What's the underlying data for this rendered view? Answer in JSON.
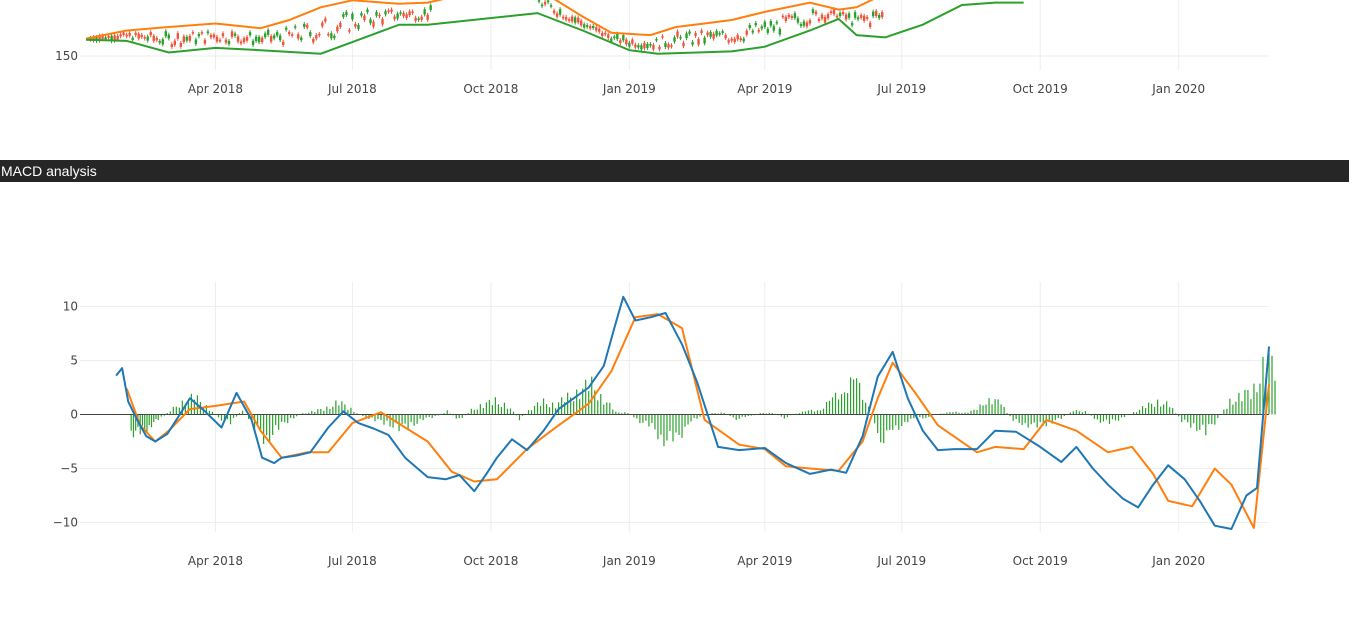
{
  "colors": {
    "candle_up": "#2ca02c",
    "candle_down": "#ef553b",
    "band_upper": "#ff7f0e",
    "band_lower": "#2ca02c",
    "macd": "#1f77b4",
    "signal": "#ff7f0e",
    "histogram": "#2ca02c",
    "header_bg": "#262626",
    "grid": "#eeeeee"
  },
  "header": {
    "title": "MACD analysis"
  },
  "chart_data": [
    {
      "type": "candlestick",
      "title": "",
      "partially_cropped": true,
      "y_ticks": [
        "150"
      ],
      "x_ticks": [
        "Apr 2018",
        "Jul 2018",
        "Oct 2018",
        "Jan 2019",
        "Apr 2019",
        "Jul 2019",
        "Oct 2019",
        "Jan 2020"
      ],
      "grid": true,
      "series": [
        {
          "name": "",
          "style": "upper band",
          "x": [
            "2018-01-05",
            "2018-02-01",
            "2018-03-01",
            "2018-04-01",
            "2018-05-01",
            "2018-05-20",
            "2018-06-10",
            "2018-07-01",
            "2018-08-01",
            "2018-08-20",
            "2018-10-20",
            "2018-11-01",
            "2018-12-01",
            "2018-12-20",
            "2019-01-15",
            "2019-02-01",
            "2019-02-20",
            "2019-03-10",
            "2019-04-01",
            "2019-05-01",
            "2019-05-20",
            "2019-06-01",
            "2019-06-20"
          ],
          "y": [
            165,
            172,
            175,
            178,
            174,
            181,
            192,
            198,
            195,
            196,
            214,
            208,
            184,
            170,
            168,
            175,
            178,
            181,
            188,
            196,
            190,
            192,
            204
          ]
        },
        {
          "name": "",
          "style": "lower band",
          "x": [
            "2018-01-05",
            "2018-02-01",
            "2018-03-01",
            "2018-04-01",
            "2018-05-01",
            "2018-06-10",
            "2018-07-01",
            "2018-08-01",
            "2018-08-20",
            "2018-11-01",
            "2018-12-01",
            "2019-01-01",
            "2019-01-20",
            "2019-02-15",
            "2019-03-10",
            "2019-04-01",
            "2019-05-01",
            "2019-05-20",
            "2019-06-01",
            "2019-06-20",
            "2019-07-15",
            "2019-08-10",
            "2019-09-01",
            "2019-09-20"
          ],
          "y": [
            164,
            163,
            153,
            157,
            155,
            152,
            162,
            177,
            177,
            187,
            172,
            155,
            152,
            153,
            154,
            158,
            172,
            182,
            168,
            166,
            177,
            194,
            196,
            196
          ]
        }
      ]
    },
    {
      "type": "line+bar",
      "title": "",
      "ylim": [
        -12,
        12
      ],
      "y_ticks": [
        "10",
        "5",
        "0",
        "−5",
        "−10"
      ],
      "x_ticks": [
        "Apr 2018",
        "Jul 2018",
        "Oct 2018",
        "Jan 2019",
        "Apr 2019",
        "Jul 2019",
        "Oct 2019",
        "Jan 2020"
      ],
      "grid": true,
      "zero_line": true,
      "macd": {
        "name": "",
        "x": [
          "2018-01-25",
          "2018-01-29",
          "2018-02-02",
          "2018-02-08",
          "2018-02-14",
          "2018-02-20",
          "2018-02-28",
          "2018-03-07",
          "2018-03-15",
          "2018-03-25",
          "2018-04-05",
          "2018-04-15",
          "2018-04-25",
          "2018-05-02",
          "2018-05-10",
          "2018-05-15",
          "2018-05-20",
          "2018-05-25",
          "2018-06-03",
          "2018-06-15",
          "2018-06-25",
          "2018-07-05",
          "2018-07-15",
          "2018-07-25",
          "2018-08-05",
          "2018-08-20",
          "2018-09-01",
          "2018-09-10",
          "2018-09-20",
          "2018-09-28",
          "2018-10-05",
          "2018-10-15",
          "2018-10-25",
          "2018-11-05",
          "2018-11-15",
          "2018-11-25",
          "2018-12-05",
          "2018-12-15",
          "2018-12-22",
          "2018-12-28",
          "2019-01-05",
          "2019-01-15",
          "2019-01-25",
          "2019-02-05",
          "2019-02-15",
          "2019-03-01",
          "2019-03-15",
          "2019-04-01",
          "2019-04-15",
          "2019-05-01",
          "2019-05-15",
          "2019-05-25",
          "2019-06-05",
          "2019-06-15",
          "2019-06-25",
          "2019-07-05",
          "2019-07-15",
          "2019-07-25",
          "2019-08-05",
          "2019-08-20",
          "2019-09-01",
          "2019-09-15",
          "2019-10-01",
          "2019-10-15",
          "2019-10-25",
          "2019-11-05",
          "2019-11-15",
          "2019-11-25",
          "2019-12-05",
          "2019-12-15",
          "2019-12-25",
          "2020-01-05",
          "2020-01-15",
          "2020-01-25",
          "2020-02-05",
          "2020-02-15",
          "2020-02-22",
          "2020-03-01"
        ],
        "y": [
          3.6,
          4.3,
          1.2,
          -0.5,
          -2.0,
          -2.5,
          -1.8,
          -0.3,
          1.5,
          0.3,
          -1.2,
          2.0,
          -0.5,
          -4.0,
          -4.5,
          -4.0,
          -3.9,
          -3.8,
          -3.5,
          -1.2,
          0.3,
          -0.8,
          -1.3,
          -1.9,
          -4.0,
          -5.8,
          -6.0,
          -5.6,
          -7.1,
          -5.5,
          -4.0,
          -2.3,
          -3.3,
          -1.5,
          0.5,
          1.5,
          2.5,
          4.5,
          8.0,
          10.9,
          8.7,
          9.0,
          9.4,
          6.5,
          3.0,
          -3.0,
          -3.3,
          -3.1,
          -4.5,
          -5.5,
          -5.1,
          -5.4,
          -2.0,
          3.5,
          5.8,
          1.5,
          -1.5,
          -3.3,
          -3.2,
          -3.2,
          -1.5,
          -1.6,
          -3.0,
          -4.4,
          -3.0,
          -5.0,
          -6.5,
          -7.8,
          -8.6,
          -6.5,
          -4.7,
          -6.0,
          -8.0,
          -10.3,
          -10.6,
          -7.5,
          -6.8,
          6.3
        ]
      },
      "signal": {
        "name": "",
        "x": [
          "2018-02-01",
          "2018-02-10",
          "2018-02-20",
          "2018-03-01",
          "2018-03-15",
          "2018-04-01",
          "2018-04-20",
          "2018-05-01",
          "2018-05-15",
          "2018-06-01",
          "2018-06-15",
          "2018-07-01",
          "2018-07-20",
          "2018-08-05",
          "2018-08-20",
          "2018-09-05",
          "2018-09-20",
          "2018-10-05",
          "2018-10-25",
          "2018-11-15",
          "2018-12-05",
          "2018-12-20",
          "2019-01-05",
          "2019-01-20",
          "2019-02-05",
          "2019-02-20",
          "2019-03-15",
          "2019-04-01",
          "2019-04-15",
          "2019-05-01",
          "2019-05-20",
          "2019-06-05",
          "2019-06-15",
          "2019-06-25",
          "2019-07-10",
          "2019-07-25",
          "2019-08-20",
          "2019-09-01",
          "2019-09-20",
          "2019-10-05",
          "2019-10-25",
          "2019-11-15",
          "2019-12-01",
          "2019-12-15",
          "2019-12-25",
          "2020-01-10",
          "2020-01-25",
          "2020-02-05",
          "2020-02-20",
          "2020-03-01"
        ],
        "y": [
          2.4,
          -1.0,
          -2.5,
          -1.5,
          0.5,
          0.8,
          1.2,
          -1.5,
          -4.0,
          -3.5,
          -3.5,
          -0.8,
          0.2,
          -1.2,
          -2.5,
          -5.3,
          -6.2,
          -6.0,
          -3.2,
          -1.0,
          1.0,
          4.0,
          9.0,
          9.3,
          8.0,
          -0.5,
          -2.8,
          -3.2,
          -4.8,
          -5.0,
          -5.2,
          -2.5,
          1.5,
          4.8,
          2.0,
          -1.0,
          -3.5,
          -3.0,
          -3.2,
          -0.5,
          -1.5,
          -3.5,
          -3.0,
          -5.5,
          -8.0,
          -8.5,
          -5.0,
          -6.5,
          -10.5,
          2.8
        ]
      },
      "histogram": {
        "name": "",
        "x": [
          "2018-02-04",
          "2018-02-10",
          "2018-02-16",
          "2018-02-22",
          "2018-03-02",
          "2018-03-10",
          "2018-03-18",
          "2018-03-26",
          "2018-04-03",
          "2018-04-11",
          "2018-04-19",
          "2018-04-27",
          "2018-05-05",
          "2018-05-13",
          "2018-05-21",
          "2018-05-29",
          "2018-06-06",
          "2018-06-14",
          "2018-06-22",
          "2018-06-30",
          "2018-07-08",
          "2018-07-16",
          "2018-07-24",
          "2018-08-01",
          "2018-08-09",
          "2018-08-17",
          "2018-08-25",
          "2018-09-02",
          "2018-09-10",
          "2018-09-18",
          "2018-09-26",
          "2018-10-04",
          "2018-10-12",
          "2018-10-20",
          "2018-10-28",
          "2018-11-05",
          "2018-11-13",
          "2018-11-21",
          "2018-11-29",
          "2018-12-07",
          "2018-12-15",
          "2018-12-23",
          "2018-12-31",
          "2019-01-08",
          "2019-01-16",
          "2019-01-24",
          "2019-02-01",
          "2019-02-09",
          "2019-02-17",
          "2019-02-25",
          "2019-03-05",
          "2019-03-13",
          "2019-03-21",
          "2019-03-29",
          "2019-04-06",
          "2019-04-14",
          "2019-04-22",
          "2019-04-30",
          "2019-05-08",
          "2019-05-16",
          "2019-05-24",
          "2019-06-01",
          "2019-06-09",
          "2019-06-17",
          "2019-06-25",
          "2019-07-03",
          "2019-07-11",
          "2019-07-19",
          "2019-07-27",
          "2019-08-04",
          "2019-08-12",
          "2019-08-20",
          "2019-08-28",
          "2019-09-05",
          "2019-09-13",
          "2019-09-21",
          "2019-09-29",
          "2019-10-07",
          "2019-10-15",
          "2019-10-23",
          "2019-10-31",
          "2019-11-08",
          "2019-11-16",
          "2019-11-24",
          "2019-12-02",
          "2019-12-10",
          "2019-12-18",
          "2019-12-26",
          "2020-01-03",
          "2020-01-11",
          "2020-01-19",
          "2020-01-27",
          "2020-02-04",
          "2020-02-12",
          "2020-02-20",
          "2020-02-28"
        ],
        "y": [
          -1.5,
          -1.8,
          -1.0,
          -0.5,
          0.3,
          1.2,
          1.5,
          0.8,
          -0.3,
          -0.8,
          0.4,
          -1.2,
          -2.3,
          -1.2,
          -0.4,
          0.1,
          0.3,
          0.6,
          1.1,
          0.5,
          -0.2,
          -0.5,
          -0.8,
          -1.2,
          -1.0,
          -0.4,
          -0.2,
          0.3,
          -0.5,
          0.4,
          0.9,
          1.2,
          0.8,
          -0.4,
          0.6,
          1.1,
          0.9,
          1.5,
          2.2,
          2.6,
          1.4,
          0.2,
          0.2,
          -0.6,
          -1.2,
          -2.2,
          -2.5,
          -0.7,
          -0.3,
          0.1,
          0.2,
          -0.4,
          -0.2,
          0.1,
          0.2,
          -0.3,
          0.1,
          0.3,
          0.5,
          1.3,
          2.6,
          2.8,
          0.9,
          -2.2,
          -1.7,
          -0.6,
          -0.4,
          -0.2,
          0.1,
          0.2,
          0.2,
          0.4,
          1.6,
          0.9,
          -0.6,
          -0.8,
          -1.2,
          -0.7,
          -0.4,
          0.3,
          0.3,
          -0.5,
          -0.8,
          -0.3,
          0.2,
          0.7,
          1.2,
          0.8,
          -0.6,
          -1.0,
          -1.6,
          -0.4,
          1.2,
          1.6,
          2.3,
          4.6
        ]
      }
    }
  ]
}
